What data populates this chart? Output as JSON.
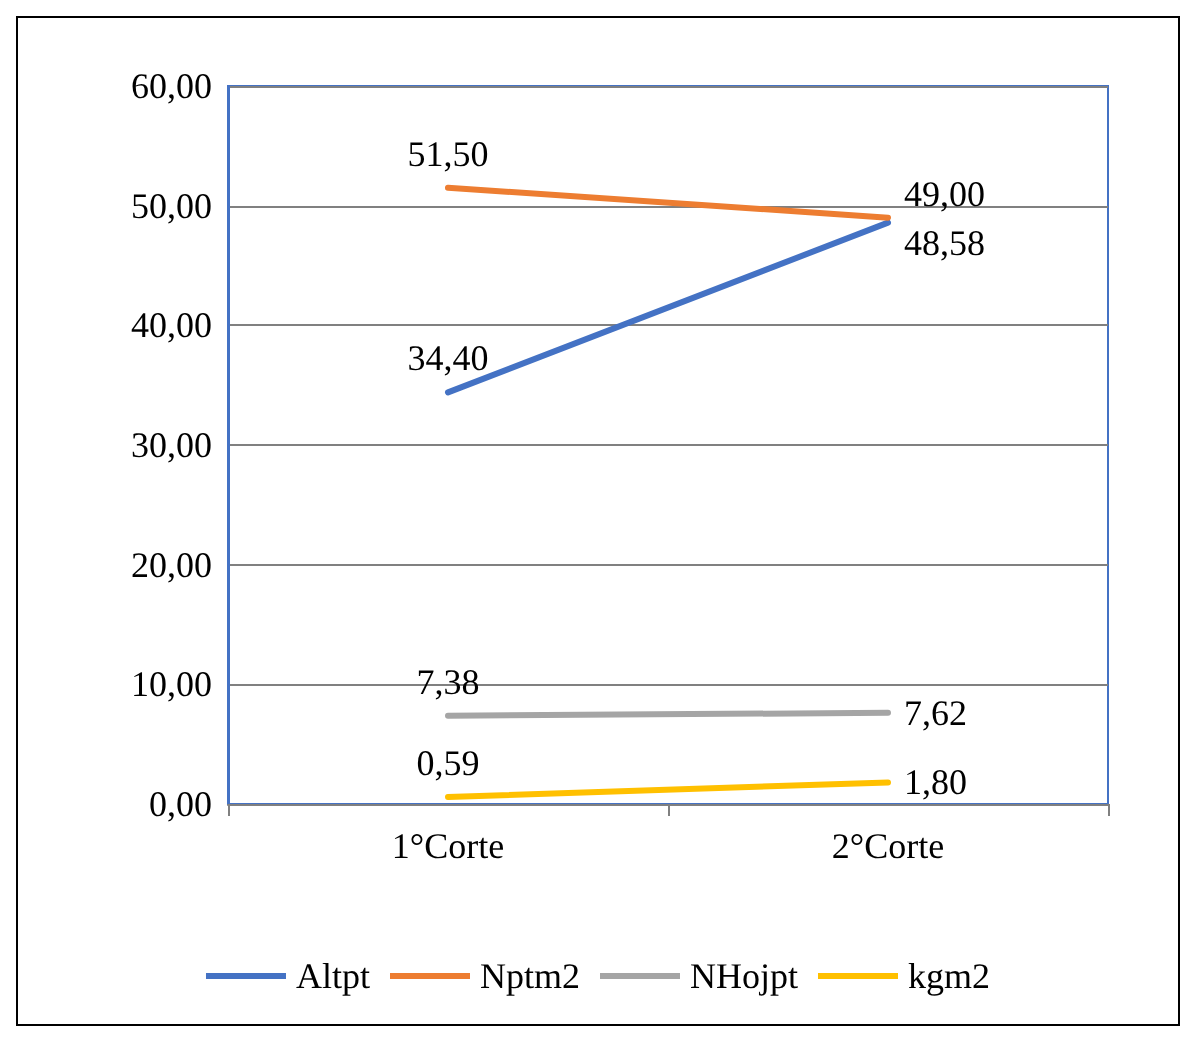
{
  "chart_data": {
    "type": "line",
    "categories": [
      "1°Corte",
      "2°Corte"
    ],
    "series": [
      {
        "name": "Altpt",
        "color": "#4472c4",
        "values": [
          34.4,
          48.58
        ],
        "value_labels": [
          "34,40",
          "48,58"
        ]
      },
      {
        "name": "Nptm2",
        "color": "#ed7d31",
        "values": [
          51.5,
          49.0
        ],
        "value_labels": [
          "51,50",
          "49,00"
        ]
      },
      {
        "name": "NHojpt",
        "color": "#a5a5a5",
        "values": [
          7.38,
          7.62
        ],
        "value_labels": [
          "7,38",
          "7,62"
        ]
      },
      {
        "name": "kgm2",
        "color": "#ffc000",
        "values": [
          0.59,
          1.8
        ],
        "value_labels": [
          "0,59",
          "1,80"
        ]
      }
    ],
    "ylim": [
      0,
      60
    ],
    "yticks": [
      {
        "value": 0,
        "label": "0,00"
      },
      {
        "value": 10,
        "label": "10,00"
      },
      {
        "value": 20,
        "label": "20,00"
      },
      {
        "value": 30,
        "label": "30,00"
      },
      {
        "value": 40,
        "label": "40,00"
      },
      {
        "value": 50,
        "label": "50,00"
      },
      {
        "value": 60,
        "label": "60,00"
      }
    ],
    "grid": "y",
    "legend": "bottom",
    "marker": "none",
    "line_style": "solid"
  }
}
